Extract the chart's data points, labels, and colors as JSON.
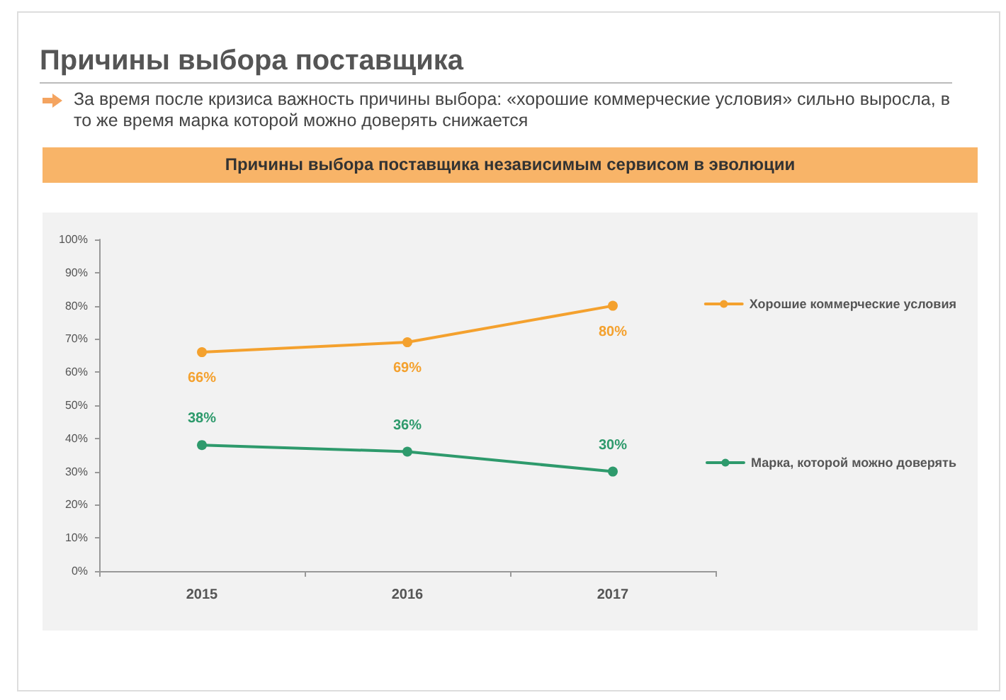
{
  "chart_data": {
    "type": "line",
    "title": "Причины выбора поставщика",
    "subtitle": "За время после кризиса важность причины выбора: «хорошие коммерческие условия» сильно выросла, в то же время марка которой можно доверять снижается",
    "annotations": [
      "Причины выбора поставщика независимым сервисом в эволюции"
    ],
    "categories": [
      "2015",
      "2016",
      "2017"
    ],
    "series": [
      {
        "name": "Хорошие коммерческие условия",
        "color": "#f4a12e",
        "values": [
          66,
          69,
          80
        ],
        "value_labels": [
          "66%",
          "69%",
          "80%"
        ]
      },
      {
        "name": "Марка, которой можно доверять",
        "color": "#2e9a6c",
        "values": [
          38,
          36,
          30
        ],
        "value_labels": [
          "38%",
          "36%",
          "30%"
        ]
      }
    ],
    "ylim": [
      0,
      100
    ],
    "yticks": [
      {
        "value": 0,
        "label": "0%"
      },
      {
        "value": 10,
        "label": "10%"
      },
      {
        "value": 20,
        "label": "20%"
      },
      {
        "value": 30,
        "label": "30%"
      },
      {
        "value": 40,
        "label": "40%"
      },
      {
        "value": 50,
        "label": "50%"
      },
      {
        "value": 60,
        "label": "60%"
      },
      {
        "value": 70,
        "label": "70%"
      },
      {
        "value": 80,
        "label": "80%"
      },
      {
        "value": 90,
        "label": "90%"
      },
      {
        "value": 100,
        "label": "100%"
      }
    ],
    "grid": false,
    "legend": "right",
    "marker": "circle",
    "line_style": "solid"
  }
}
